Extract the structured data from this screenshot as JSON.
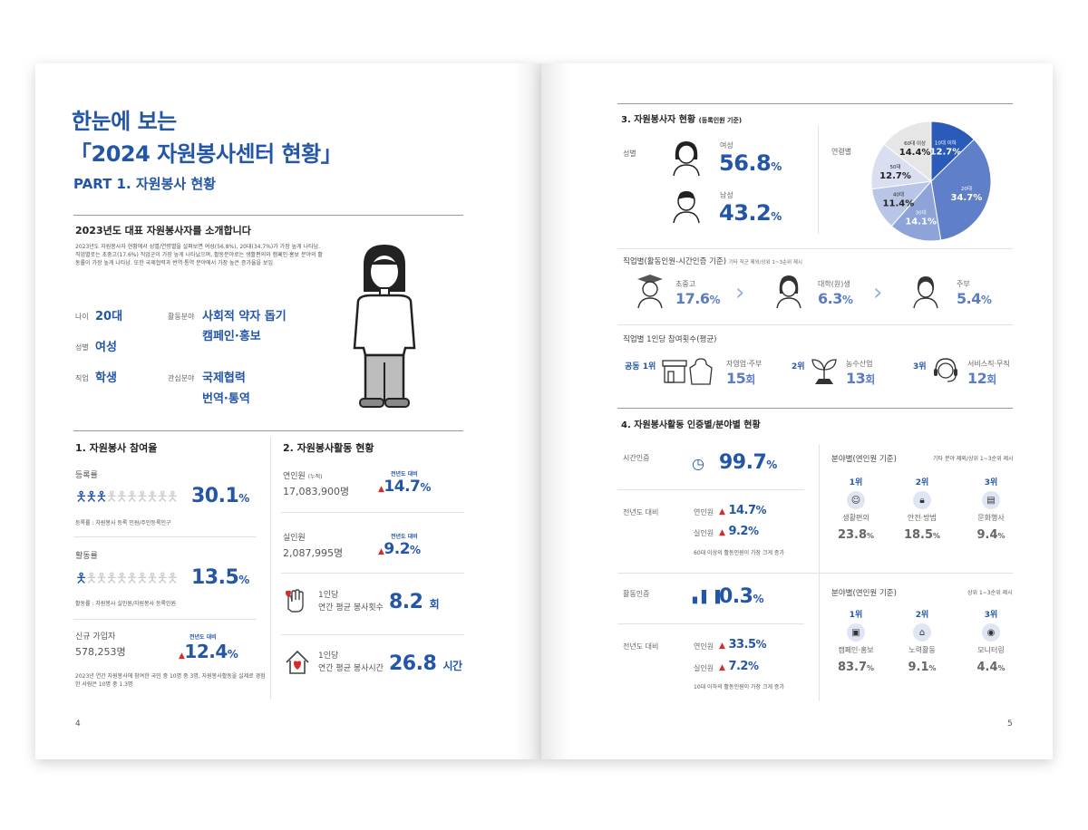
{
  "left": {
    "title_line1": "한눈에 보는",
    "title_line2": "「2024 자원봉사센터 현황」",
    "part_title": "PART 1. 자원봉사 현황",
    "intro_heading": "2023년도 대표 자원봉사자를 소개합니다",
    "intro_text": "2023년도 자원봉사자 현황에서 성별/연령별을 살펴보면 여성(56.8%), 20대(34.7%)가 가장 높게 나타남. 직업별로는 초중고(17.6%) 직업군이 가장 높게 나타났으며, 활동분야로는 생활편의와 캠페인·홍보 분야의 활동률이 가장 높게 나타남. 또한 국제협력과 번역·통역 분야에서 가장 높은 증가율을 보임",
    "profile": {
      "age_label": "나이",
      "age_value": "20대",
      "field_label": "활동분야",
      "field_value1": "사회적 약자 돕기",
      "field_value2": "캠페인·홍보",
      "gender_label": "성별",
      "gender_value": "여성",
      "job_label": "직업",
      "job_value": "학생",
      "interest_label": "관심분야",
      "interest_value1": "국제협력",
      "interest_value2": "번역·통역"
    },
    "sec1": {
      "title": "1. 자원봉사 참여율",
      "reg_label": "등록률",
      "reg_value": "30.1",
      "reg_unit": "%",
      "reg_note": "등록률 : 자원봉사 등록 인원/주민등록인구",
      "act_label": "활동률",
      "act_value": "13.5",
      "act_unit": "%",
      "act_note": "활동률 : 자원봉사 실인원/자원봉사 등록인원",
      "new_label": "신규 가입자",
      "new_count": "578,253명",
      "new_yoy_label": "전년도 대비",
      "new_yoy": "12.4",
      "new_yoy_unit": "%",
      "new_note": "2023년 연간 자원봉사에 참여한 국민 중 10명 중 3명, 자원봉사활동을 실제로 경험한 사람은 10명 중 1.3명"
    },
    "sec2": {
      "title": "2. 자원봉사활동 현황",
      "total_label": "연인원",
      "total_tag": "(누적)",
      "total_value": "17,083,900명",
      "total_yoy_label": "전년도 대비",
      "total_yoy": "14.7",
      "total_yoy_unit": "%",
      "real_label": "실인원",
      "real_value": "2,087,995명",
      "real_yoy_label": "전년도 대비",
      "real_yoy": "9.2",
      "real_yoy_unit": "%",
      "count_label1": "1인당",
      "count_label2": "연간 평균 봉사횟수",
      "count_value": "8.2",
      "count_unit": "회",
      "time_label1": "1인당",
      "time_label2": "연간 평균 봉사시간",
      "time_value": "26.8",
      "time_unit": "시간"
    },
    "page_number": "4"
  },
  "right": {
    "sec3": {
      "title": "3. 자원봉사자 현황",
      "title_note": "(등록인원 기준)",
      "gender_label": "성별",
      "female_label": "여성",
      "female_value": "56.8",
      "female_unit": "%",
      "male_label": "남성",
      "male_value": "43.2",
      "male_unit": "%",
      "age_label": "연령별",
      "job_title": "직업별(활동인원-시간인증 기준)",
      "job_note": "기타 직군 제외/상위 1~3순위 제시",
      "job1_label": "초중고",
      "job1_value": "17.6",
      "job1_unit": "%",
      "job2_label": "대학(원)생",
      "job2_value": "6.3",
      "job2_unit": "%",
      "job3_label": "주부",
      "job3_value": "5.4",
      "job3_unit": "%",
      "freq_title": "직업별 1인당 참여횟수(평균)",
      "freq1_rank": "공동 1위",
      "freq1_label": "자영업·주부",
      "freq1_value": "15",
      "freq1_unit": "회",
      "freq2_rank": "2위",
      "freq2_label": "농수산업",
      "freq2_value": "13",
      "freq2_unit": "회",
      "freq3_rank": "3위",
      "freq3_label": "서비스직·무직",
      "freq3_value": "12",
      "freq3_unit": "회"
    },
    "sec4": {
      "title": "4. 자원봉사활동 인증별/분야별 현황",
      "time_cert_label": "시간인증",
      "time_cert_value": "99.7",
      "time_cert_unit": "%",
      "yoy_label": "전년도 대비",
      "time_yoy_total_label": "연인원",
      "time_yoy_total": "14.7",
      "time_yoy_total_unit": "%",
      "time_yoy_real_label": "실인원",
      "time_yoy_real": "9.2",
      "time_yoy_real_unit": "%",
      "time_note": "60대 이상의 활동인원이 가장 크게 증가",
      "field_title": "분야별(연인원 기준)",
      "field_note1": "기타 분야 제외/상위 1~3순위 제시",
      "field_note2": "상위 1~3순위 제시",
      "rank1": "1위",
      "rank2": "2위",
      "rank3": "3위",
      "f1_label": "생활편의",
      "f1_value": "23.8",
      "f1_unit": "%",
      "f2_label": "안전·방범",
      "f2_value": "18.5",
      "f2_unit": "%",
      "f3_label": "문화행사",
      "f3_value": "9.4",
      "f3_unit": "%",
      "act_cert_label": "활동인증",
      "act_cert_value": "0.3",
      "act_cert_unit": "%",
      "act_yoy_total_label": "연인원",
      "act_yoy_total": "33.5",
      "act_yoy_total_unit": "%",
      "act_yoy_real_label": "실인원",
      "act_yoy_real": "7.2",
      "act_yoy_real_unit": "%",
      "act_note": "10대 이하의 활동인원이 가장 크게 증가",
      "g1_label": "캠페인·홍보",
      "g1_value": "83.7",
      "g1_unit": "%",
      "g2_label": "노력활동",
      "g2_value": "9.1",
      "g2_unit": "%",
      "g3_label": "모니터링",
      "g3_value": "4.4",
      "g3_unit": "%"
    },
    "page_number": "5"
  },
  "chart_data": {
    "type": "pie",
    "categories": [
      "10대 이하",
      "20대",
      "30대",
      "40대",
      "50대",
      "60대 이상"
    ],
    "values": [
      12.7,
      34.7,
      14.1,
      11.4,
      12.7,
      14.4
    ],
    "colors": [
      "#2b5bb8",
      "#5f7fc8",
      "#8ea3d8",
      "#b9c5e6",
      "#d9dff0",
      "#e6e6e6"
    ],
    "labels_display": [
      "12.7%",
      "34.7%",
      "14.1%",
      "11.4%",
      "12.7%",
      "14.4%"
    ]
  }
}
